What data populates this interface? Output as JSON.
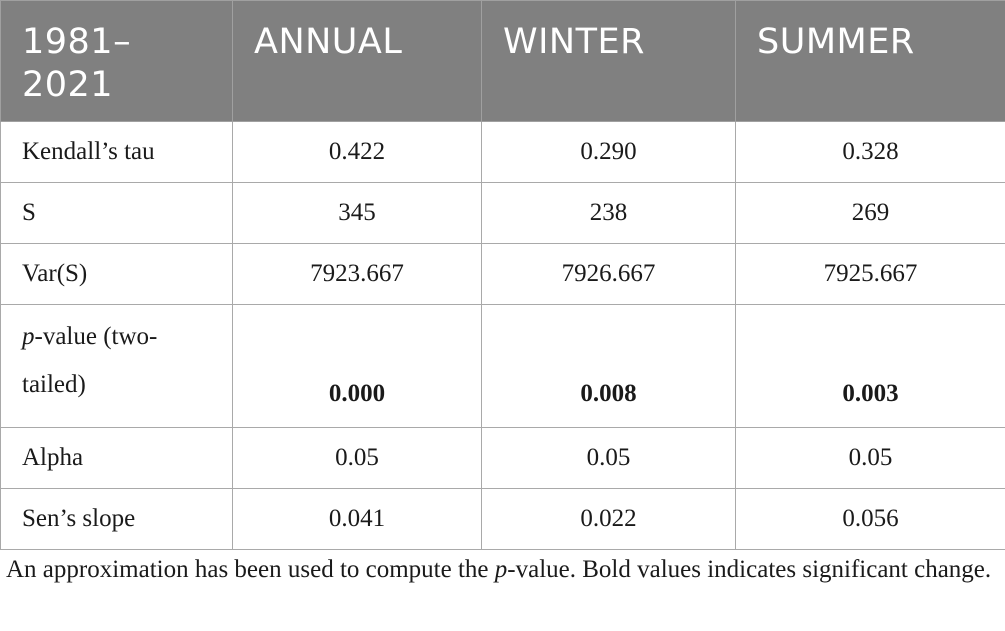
{
  "table": {
    "headers": [
      "1981–\n2021",
      "ANNUAL",
      "WINTER",
      "SUMMER"
    ],
    "header_first_line1": "1981–",
    "header_first_line2": "2021",
    "rows": [
      {
        "label": "Kendall’s tau",
        "annual": "0.422",
        "winter": "0.290",
        "summer": "0.328"
      },
      {
        "label": "S",
        "annual": "345",
        "winter": "238",
        "summer": "269"
      },
      {
        "label": "Var(S)",
        "annual": "7923.667",
        "winter": "7926.667",
        "summer": "7925.667"
      },
      {
        "label_italic": "p",
        "label_rest_line1": "-value (two-",
        "label_line2": "tailed)",
        "annual": "0.000",
        "winter": "0.008",
        "summer": "0.003",
        "bold": true
      },
      {
        "label": "Alpha",
        "annual": "0.05",
        "winter": "0.05",
        "summer": "0.05"
      },
      {
        "label": "Sen’s slope",
        "annual": "0.041",
        "winter": "0.022",
        "summer": "0.056"
      }
    ]
  },
  "note": {
    "part1": "An approximation has been used to compute the ",
    "italic": "p",
    "part2": "-value. Bold values indicates significant change."
  },
  "colors": {
    "header_bg": "#808080",
    "header_text": "#ffffff",
    "border": "#a9a9a9"
  }
}
